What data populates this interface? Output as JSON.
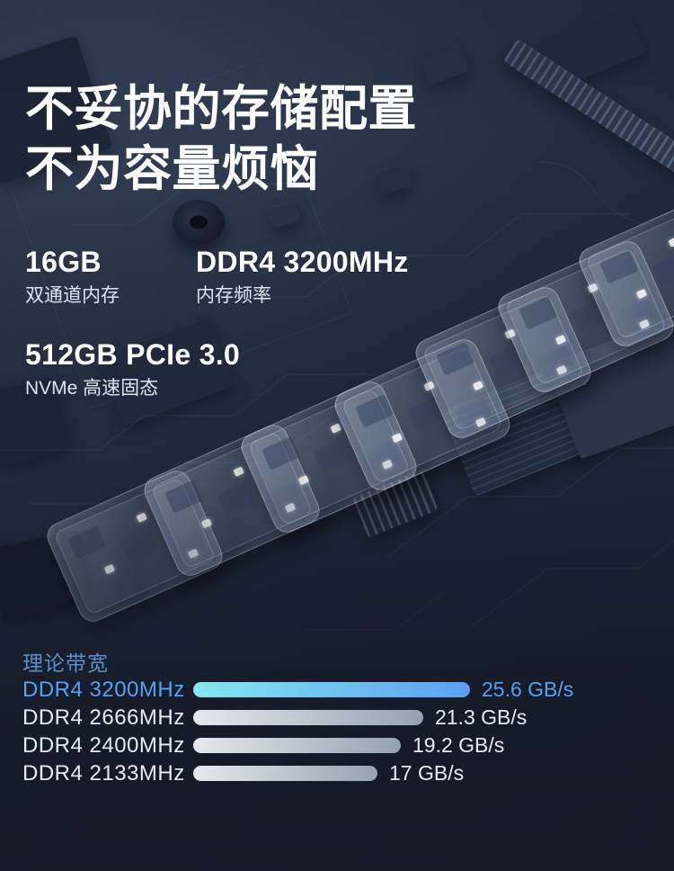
{
  "hero": {
    "title_line1": "不妥协的存储配置",
    "title_line2": "不为容量烦恼"
  },
  "specs": [
    {
      "value": "16GB",
      "label": "双通道内存"
    },
    {
      "value": "DDR4 3200MHz",
      "label": "内存频率"
    },
    {
      "value": "512GB PCIe 3.0",
      "label": "NVMe 高速固态"
    }
  ],
  "chart_data": {
    "type": "bar",
    "orientation": "horizontal",
    "title": "理论带宽",
    "categories": [
      "DDR4 3200MHz",
      "DDR4 2666MHz",
      "DDR4 2400MHz",
      "DDR4 2133MHz"
    ],
    "values": [
      25.6,
      21.3,
      19.2,
      17
    ],
    "value_labels": [
      "25.6 GB/s",
      "21.3 GB/s",
      "19.2 GB/s",
      "17 GB/s"
    ],
    "unit": "GB/s",
    "xlim": [
      0,
      25.6
    ],
    "highlight_index": 0,
    "grid": false,
    "legend": false,
    "colors": {
      "highlight_text": "#58a0f0",
      "title_text": "#5e8ec9",
      "text": "#e7ebf0",
      "highlight_bar_start": "#87e6ef",
      "highlight_bar_end": "#5c9ff2",
      "bar_start": "#e4e9ed",
      "bar_end": "#96a2af"
    }
  }
}
